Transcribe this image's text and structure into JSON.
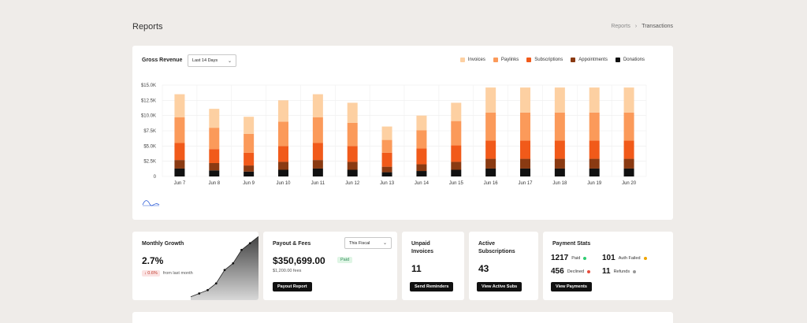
{
  "page": {
    "title": "Reports"
  },
  "breadcrumb": {
    "parent": "Reports",
    "separator": "›",
    "current": "Transactions"
  },
  "revenue": {
    "title": "Gross Revenue",
    "range_selected": "Last 14 Days",
    "legend": [
      {
        "name": "Invoices",
        "color": "#fdd0a2"
      },
      {
        "name": "Paylinks",
        "color": "#fb9a5a"
      },
      {
        "name": "Subscriptions",
        "color": "#f15a1a"
      },
      {
        "name": "Appointments",
        "color": "#8a3a12"
      },
      {
        "name": "Donations",
        "color": "#111111"
      }
    ]
  },
  "chart_data": {
    "type": "bar",
    "stacked": true,
    "categories": [
      "Jun 7",
      "Jun 8",
      "Jun 9",
      "Jun 10",
      "Jun 11",
      "Jun 12",
      "Jun 13",
      "Jun 14",
      "Jun 15",
      "Jun 16",
      "Jun 17",
      "Jun 18",
      "Jun 19",
      "Jun 20"
    ],
    "series": [
      {
        "name": "Donations",
        "color": "#111111",
        "values": [
          1300,
          1000,
          800,
          1100,
          1300,
          1100,
          700,
          900,
          1100,
          1300,
          1300,
          1300,
          1300,
          1300
        ]
      },
      {
        "name": "Appointments",
        "color": "#8a3a12",
        "values": [
          1400,
          1200,
          1000,
          1300,
          1400,
          1300,
          900,
          1100,
          1300,
          1600,
          1600,
          1600,
          1600,
          1600
        ]
      },
      {
        "name": "Subscriptions",
        "color": "#f15a1a",
        "values": [
          2800,
          2300,
          2100,
          2600,
          2800,
          2600,
          2300,
          2600,
          2700,
          3000,
          3000,
          3000,
          3000,
          3000
        ]
      },
      {
        "name": "Paylinks",
        "color": "#fb9a5a",
        "values": [
          4200,
          3500,
          3100,
          4000,
          4200,
          3800,
          2100,
          3000,
          4000,
          4600,
          4600,
          4600,
          4600,
          4600
        ]
      },
      {
        "name": "Invoices",
        "color": "#fdd0a2",
        "values": [
          3800,
          3100,
          2800,
          3500,
          3800,
          3300,
          2200,
          2400,
          3000,
          4100,
          4100,
          4100,
          4100,
          4100
        ]
      }
    ],
    "y_ticks": [
      "0",
      "$2.5K",
      "$5.0K",
      "$7.5K",
      "$10.0K",
      "$12.5K",
      "$15.0K"
    ],
    "ylim": [
      0,
      15000
    ],
    "grid": true,
    "legend_position": "top-right"
  },
  "growth": {
    "title": "Monthly Growth",
    "value": "2.7%",
    "delta": "↓ 0.6%",
    "delta_label": "from last month",
    "sparkline": [
      0.05,
      0.1,
      0.15,
      0.25,
      0.45,
      0.55,
      0.75,
      0.85,
      0.95
    ]
  },
  "payout": {
    "title": "Payout & Fees",
    "period": "This Fiscal",
    "amount": "$350,699.00",
    "status": "Paid",
    "fees": "$1,200.00 fees",
    "button": "Payout Report"
  },
  "unpaid": {
    "title_line1": "Unpaid",
    "title_line2": "Invoices",
    "value": "11",
    "button": "Send Reminders"
  },
  "active": {
    "title_line1": "Active",
    "title_line2": "Subscriptions",
    "value": "43",
    "button": "View Active Subs"
  },
  "stats": {
    "title": "Payment Stats",
    "items": [
      {
        "num": "1217",
        "label": "Paid",
        "color": "#2ecc71"
      },
      {
        "num": "101",
        "label": "Auth Failed",
        "color": "#f0a500"
      },
      {
        "num": "456",
        "label": "Declined",
        "color": "#e74c3c"
      },
      {
        "num": "11",
        "label": "Refunds",
        "color": "#999999"
      }
    ],
    "button": "View Payments"
  }
}
